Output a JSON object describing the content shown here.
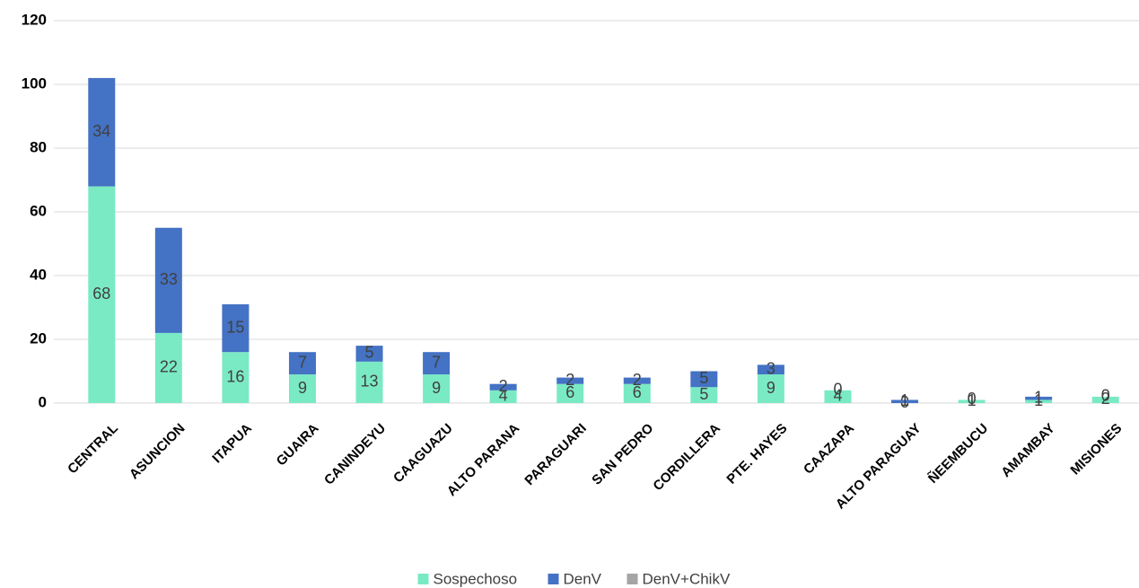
{
  "chart_data": {
    "type": "stacked-bar",
    "categories": [
      "CENTRAL",
      "ASUNCION",
      "ITAPUA",
      "GUAIRA",
      "CANINDEYU",
      "CAAGUAZU",
      "ALTO PARANA",
      "PARAGUARI",
      "SAN PEDRO",
      "CORDILLERA",
      "PTE. HAYES",
      "CAAZAPA",
      "ALTO PARAGUAY",
      "ÑEEMBUCU",
      "AMAMBAY",
      "MISIONES"
    ],
    "series": [
      {
        "name": "Sospechoso",
        "color": "#7aeac4",
        "values": [
          68,
          22,
          16,
          9,
          13,
          9,
          4,
          6,
          6,
          5,
          9,
          4,
          0,
          1,
          1,
          2
        ]
      },
      {
        "name": "DenV",
        "color": "#4472c4",
        "values": [
          34,
          33,
          15,
          7,
          5,
          7,
          2,
          2,
          2,
          5,
          3,
          0,
          1,
          0,
          1,
          0
        ]
      },
      {
        "name": "DenV+ChikV",
        "color": "#a5a5a5",
        "values": [
          0,
          0,
          0,
          0,
          0,
          0,
          0,
          0,
          0,
          0,
          0,
          0,
          0,
          0,
          0,
          0
        ]
      }
    ],
    "ylim": [
      0,
      120
    ],
    "yticks": [
      0,
      20,
      40,
      60,
      80,
      100,
      120
    ],
    "grid": true,
    "legend": "bottom"
  }
}
